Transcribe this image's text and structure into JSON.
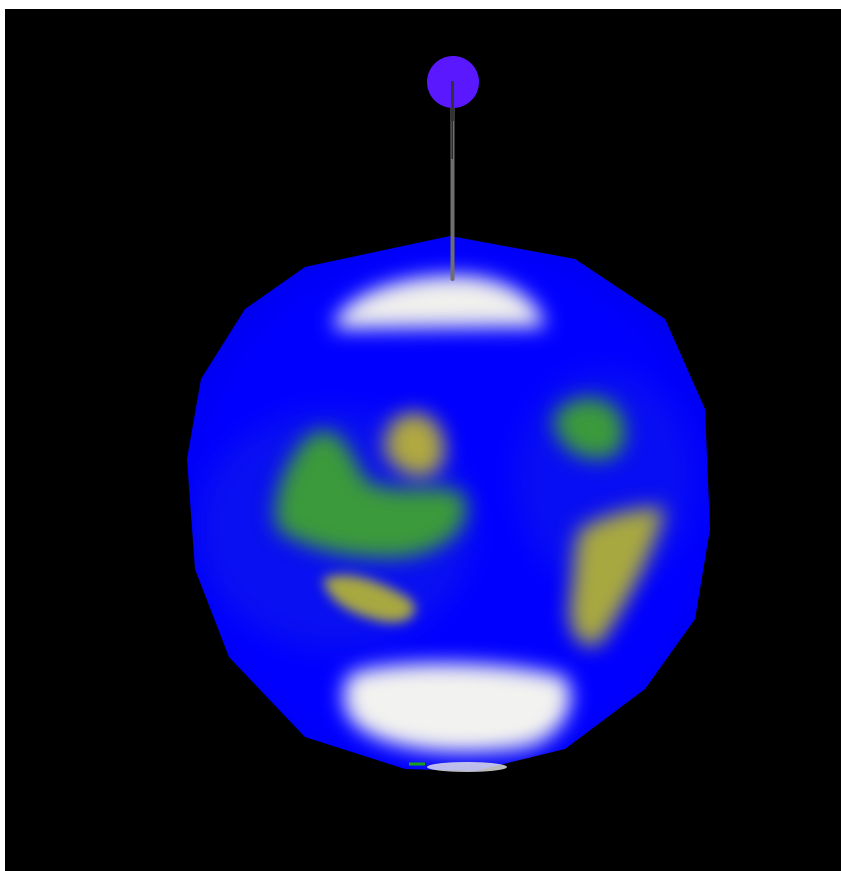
{
  "scene": {
    "background_color": "#000000",
    "ocean_color": "#0000ff",
    "land_green_color": "#3a9a3a",
    "land_yellow_color": "#a8a840",
    "ice_color": "#f0f0ee",
    "pin_head_color": "#5a18ff",
    "pin_shaft_color": "#777777"
  }
}
